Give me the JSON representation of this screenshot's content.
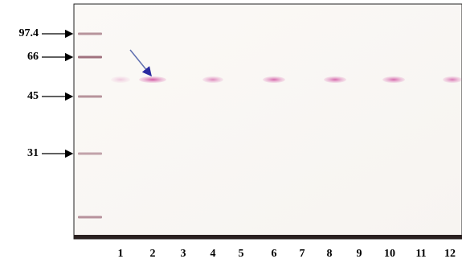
{
  "markers": [
    "97.4",
    "66",
    "45",
    "31"
  ],
  "lanes": [
    "1",
    "2",
    "3",
    "4",
    "5",
    "6",
    "7",
    "8",
    "9",
    "10",
    "11",
    "12"
  ]
}
